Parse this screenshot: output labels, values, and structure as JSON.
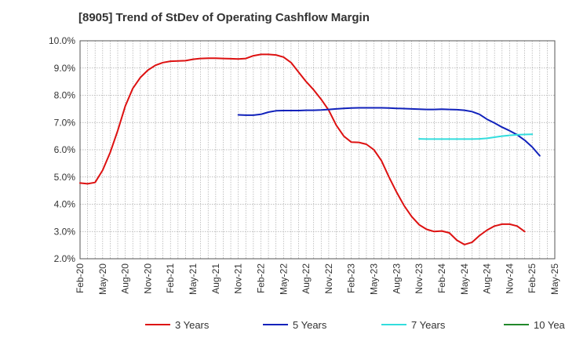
{
  "chart_data": {
    "type": "line",
    "title": "[8905]  Trend of StDev of Operating Cashflow Margin",
    "xlabel": "",
    "ylabel": "",
    "ylim": [
      2.0,
      10.0
    ],
    "y_ticks": [
      "10.0%",
      "9.0%",
      "8.0%",
      "7.0%",
      "6.0%",
      "5.0%",
      "4.0%",
      "3.0%",
      "2.0%"
    ],
    "x_ticks": [
      "Feb-20",
      "May-20",
      "Aug-20",
      "Nov-20",
      "Feb-21",
      "May-21",
      "Aug-21",
      "Nov-21",
      "Feb-22",
      "May-22",
      "Aug-22",
      "Nov-22",
      "Feb-23",
      "May-23",
      "Aug-23",
      "Nov-23",
      "Feb-24",
      "May-24",
      "Aug-24",
      "Nov-24",
      "Feb-25",
      "May-25"
    ],
    "grid": true,
    "legend_position": "bottom",
    "series": [
      {
        "name": "3 Years",
        "color": "#dd1111",
        "start_month": 0,
        "values": [
          4.78,
          4.75,
          4.8,
          5.25,
          5.9,
          6.7,
          7.6,
          8.25,
          8.65,
          8.92,
          9.1,
          9.2,
          9.25,
          9.26,
          9.27,
          9.32,
          9.35,
          9.36,
          9.36,
          9.35,
          9.34,
          9.33,
          9.35,
          9.45,
          9.5,
          9.5,
          9.48,
          9.4,
          9.2,
          8.85,
          8.5,
          8.2,
          7.85,
          7.45,
          6.9,
          6.5,
          6.28,
          6.27,
          6.2,
          6.0,
          5.6,
          5.0,
          4.45,
          3.95,
          3.55,
          3.25,
          3.08,
          3.0,
          3.02,
          2.95,
          2.68,
          2.52,
          2.6,
          2.85,
          3.05,
          3.2,
          3.27,
          3.27,
          3.2,
          3.0
        ]
      },
      {
        "name": "5 Years",
        "color": "#1122bb",
        "start_month": 21,
        "values": [
          7.28,
          7.27,
          7.27,
          7.3,
          7.38,
          7.43,
          7.44,
          7.44,
          7.44,
          7.45,
          7.45,
          7.46,
          7.48,
          7.5,
          7.52,
          7.53,
          7.54,
          7.54,
          7.54,
          7.54,
          7.53,
          7.52,
          7.51,
          7.5,
          7.49,
          7.48,
          7.48,
          7.49,
          7.48,
          7.47,
          7.45,
          7.4,
          7.3,
          7.12,
          6.98,
          6.83,
          6.7,
          6.55,
          6.35,
          6.1,
          5.78
        ]
      },
      {
        "name": "7 Years",
        "color": "#33dddd",
        "start_month": 45,
        "values": [
          6.4,
          6.39,
          6.39,
          6.39,
          6.39,
          6.39,
          6.39,
          6.39,
          6.4,
          6.42,
          6.46,
          6.5,
          6.53,
          6.55,
          6.56,
          6.57
        ]
      },
      {
        "name": "10 Years",
        "color": "#22882b",
        "start_month": 60,
        "values": []
      }
    ]
  }
}
